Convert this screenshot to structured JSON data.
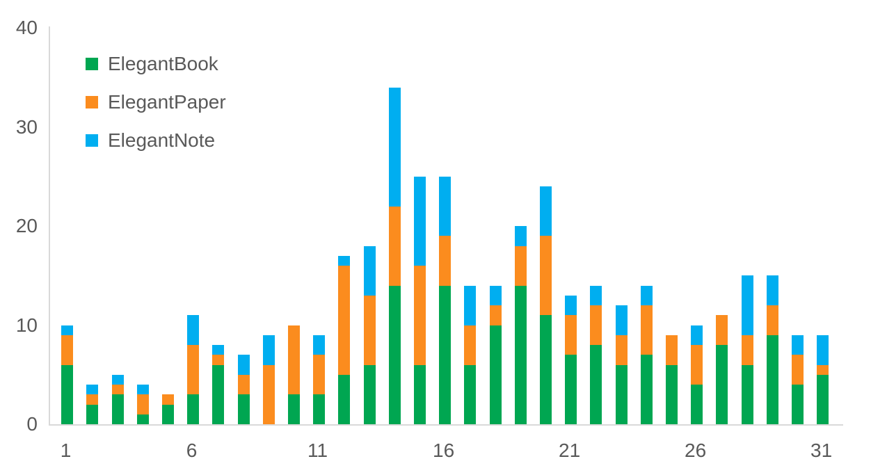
{
  "chart_data": {
    "type": "bar",
    "stacked": true,
    "title": "",
    "xlabel": "",
    "ylabel": "",
    "x": [
      1,
      2,
      3,
      4,
      5,
      6,
      7,
      8,
      9,
      10,
      11,
      12,
      13,
      14,
      15,
      16,
      17,
      18,
      19,
      20,
      21,
      22,
      23,
      24,
      25,
      26,
      27,
      28,
      29,
      30,
      31
    ],
    "series": [
      {
        "name": "ElegantBook",
        "color": "#00A651",
        "values": [
          6,
          2,
          3,
          1,
          2,
          3,
          6,
          3,
          0,
          3,
          3,
          5,
          6,
          14,
          6,
          14,
          6,
          10,
          14,
          11,
          7,
          8,
          6,
          7,
          6,
          4,
          8,
          6,
          9,
          4,
          5
        ]
      },
      {
        "name": "ElegantPaper",
        "color": "#FB8C1E",
        "values": [
          3,
          1,
          1,
          2,
          1,
          5,
          1,
          2,
          6,
          7,
          4,
          11,
          7,
          8,
          10,
          5,
          4,
          2,
          4,
          8,
          4,
          4,
          3,
          5,
          3,
          4,
          3,
          3,
          3,
          3,
          1
        ]
      },
      {
        "name": "ElegantNote",
        "color": "#00AEF0",
        "values": [
          1,
          1,
          1,
          1,
          0,
          3,
          1,
          2,
          3,
          0,
          2,
          1,
          5,
          12,
          9,
          6,
          4,
          2,
          2,
          5,
          2,
          2,
          3,
          2,
          0,
          2,
          0,
          6,
          3,
          2,
          3
        ]
      }
    ],
    "totals": [
      10,
      4,
      5,
      4,
      3,
      11,
      8,
      7,
      9,
      10,
      9,
      17,
      18,
      34,
      25,
      25,
      14,
      14,
      20,
      24,
      13,
      14,
      12,
      14,
      9,
      10,
      11,
      15,
      15,
      9,
      9
    ],
    "xticks": [
      1,
      6,
      11,
      16,
      21,
      26,
      31
    ],
    "yticks": [
      0,
      10,
      20,
      30,
      40
    ],
    "ylim": [
      0,
      40
    ],
    "grid": false,
    "legend_position": "top-left",
    "axis_color": "#D9D9D9",
    "tick_label_color": "#595959"
  }
}
